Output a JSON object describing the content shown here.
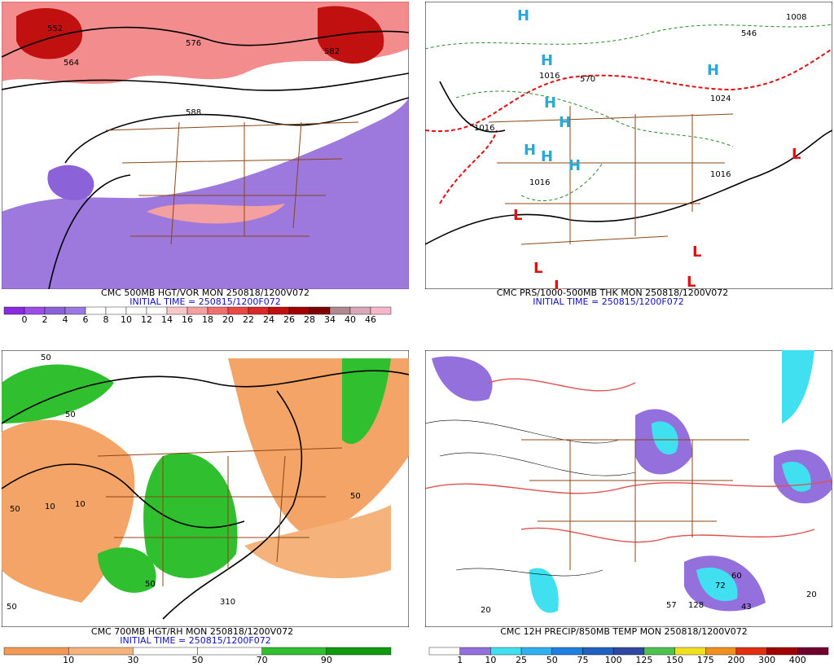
{
  "panels": [
    {
      "caption": "CMC 500MB HGT/VOR MON 250818/1200V072",
      "init": "INITIAL TIME = 250815/1200F072",
      "colorbar": {
        "labels": [
          "0",
          "2",
          "4",
          "6",
          "8",
          "10",
          "12",
          "14",
          "16",
          "18",
          "20",
          "22",
          "24",
          "26",
          "28",
          "34",
          "40",
          "46"
        ],
        "colors": [
          "#8a2be2",
          "#9a4ee6",
          "#8c62d8",
          "#9a7ae0",
          "#ffffff",
          "#ffffff",
          "#ffffff",
          "#ffffff",
          "#f8c8c8",
          "#f4a0a0",
          "#f07070",
          "#e84848",
          "#d82828",
          "#c01010",
          "#a00000",
          "#800000",
          "#b08890",
          "#d8a8b8",
          "#f4b8c8"
        ]
      },
      "map_labels": [
        "552",
        "564",
        "576",
        "588",
        "582"
      ]
    },
    {
      "caption": "CMC PRS/1000-500MB THK MON 250818/1200V072",
      "init": "INITIAL TIME = 250815/1200F072",
      "map_labels": [
        "1016",
        "1016",
        "1016",
        "1016",
        "1024",
        "1008",
        "570",
        "546"
      ],
      "highs": [
        "H",
        "H",
        "H",
        "H",
        "H",
        "H",
        "H",
        "H"
      ],
      "lows": [
        "L",
        "L",
        "L",
        "L",
        "L",
        "L"
      ]
    },
    {
      "caption": "CMC 700MB HGT/RH MON 250818/1200V072",
      "init": "INITIAL TIME = 250815/1200F072",
      "colorbar": {
        "labels": [
          "10",
          "30",
          "50",
          "70",
          "90"
        ],
        "colors": [
          "#f29a55",
          "#f5b27a",
          "#ffffff",
          "#ffffff",
          "#2fbf2f",
          "#0f9a0f"
        ]
      },
      "map_labels": [
        "50",
        "50",
        "10",
        "10",
        "50",
        "50",
        "310",
        "50",
        "50"
      ]
    },
    {
      "caption": "CMC 12H PRECIP/850MB TEMP MON 250818/1200V072",
      "init": "INITIAL TIME = 250815/1200F072",
      "colorbar": {
        "labels": [
          "1",
          "10",
          "25",
          "50",
          "75",
          "100",
          "125",
          "150",
          "175",
          "200",
          "300",
          "400"
        ],
        "colors": [
          "#ffffff",
          "#9370db",
          "#40e0f0",
          "#30b0f0",
          "#2080e0",
          "#2060c0",
          "#3048a0",
          "#50c050",
          "#f0e020",
          "#f09020",
          "#e03010",
          "#a00000",
          "#700030"
        ]
      },
      "map_labels": [
        "60",
        "72",
        "57",
        "128",
        "43",
        "20",
        "20"
      ]
    }
  ]
}
